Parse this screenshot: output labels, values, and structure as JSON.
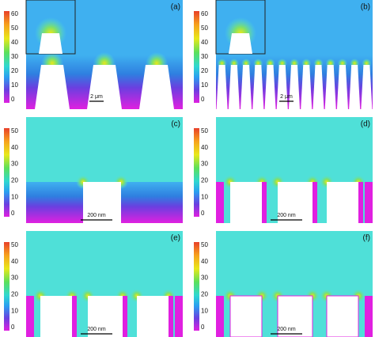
{
  "panels": [
    {
      "label": "(a)",
      "colorbar_ticks": [
        60,
        50,
        40,
        30,
        20,
        10,
        0
      ],
      "scale_bar": "2 μm"
    },
    {
      "label": "(b)",
      "colorbar_ticks": [
        60,
        50,
        40,
        30,
        20,
        10,
        0
      ],
      "scale_bar": "2 μm"
    },
    {
      "label": "(c)",
      "colorbar_ticks": [
        50,
        40,
        30,
        20,
        10,
        0
      ],
      "scale_bar": "200 nm"
    },
    {
      "label": "(d)",
      "colorbar_ticks": [
        50,
        40,
        30,
        20,
        10,
        0
      ],
      "scale_bar": "200 nm"
    },
    {
      "label": "(e)",
      "colorbar_ticks": [
        50,
        40,
        30,
        20,
        10,
        0
      ],
      "scale_bar": "200 nm"
    },
    {
      "label": "(f)",
      "colorbar_ticks": [
        50,
        40,
        30,
        20,
        10,
        0
      ],
      "scale_bar": "200 nm"
    }
  ]
}
